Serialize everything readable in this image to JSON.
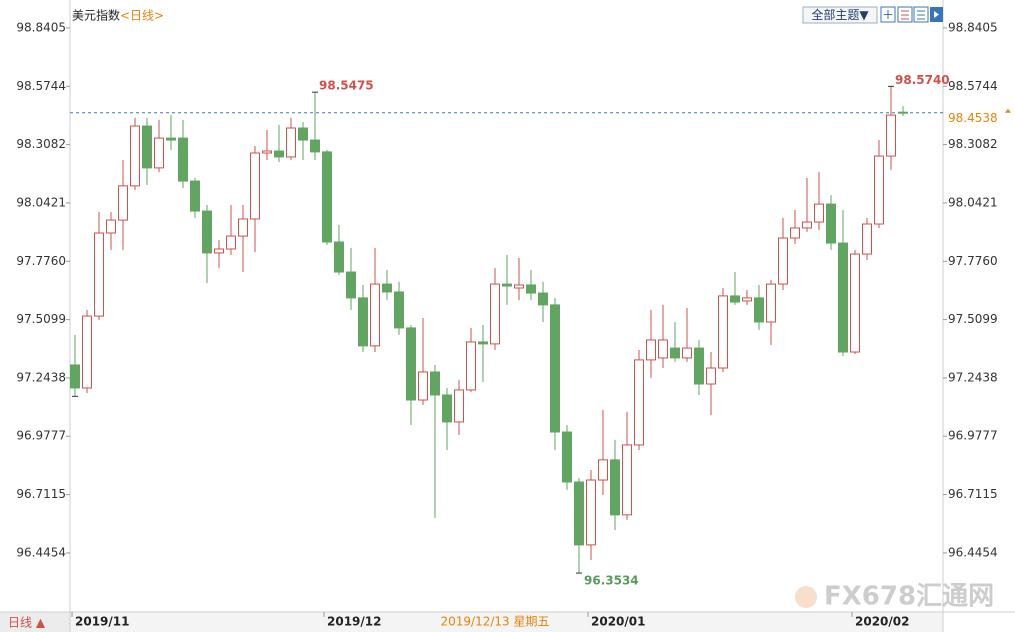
{
  "chart_data": {
    "type": "candlestick",
    "title": "美元指数",
    "period": "<日线>",
    "theme_button": "全部主题▼",
    "period_button": "日线 ▲",
    "cursor_label": "2019/12/13 星期五",
    "watermark": "FX678汇通网",
    "up_color": "#d0504a",
    "down_color": "#62a462",
    "last_price": 98.4538,
    "last_price_color": "#e8820c",
    "ylim": [
      96.185,
      98.968
    ],
    "yticks": [
      98.8405,
      98.5744,
      98.3082,
      98.0421,
      {
        "value": 97.776,
        "label": "97.7760"
      },
      97.5099,
      97.2438,
      96.9777,
      96.7115,
      96.4454
    ],
    "categories": [
      "2019/11",
      null,
      null,
      null,
      null,
      null,
      null,
      null,
      null,
      null,
      null,
      null,
      null,
      null,
      null,
      null,
      null,
      null,
      null,
      null,
      null,
      "2019/12",
      null,
      null,
      null,
      null,
      null,
      null,
      null,
      null,
      null,
      null,
      null,
      null,
      null,
      null,
      null,
      null,
      null,
      null,
      null,
      null,
      null,
      "2020/01",
      null,
      null,
      null,
      null,
      null,
      null,
      null,
      null,
      null,
      null,
      null,
      null,
      null,
      null,
      null,
      null,
      null,
      null,
      null,
      null,
      null,
      "2020/02",
      null,
      null,
      null,
      null
    ],
    "open": [
      97.303,
      97.198,
      97.526,
      97.905,
      97.964,
      98.12,
      98.393,
      98.202,
      98.338,
      98.338,
      98.142,
      98.005,
      97.814,
      97.832,
      97.891,
      97.969,
      98.27,
      98.279,
      98.252,
      98.384,
      98.329,
      98.275,
      97.864,
      97.727,
      97.609,
      97.39,
      97.672,
      97.636,
      97.472,
      97.143,
      97.271,
      97.166,
      97.043,
      97.189,
      97.408,
      97.399,
      97.672,
      97.654,
      97.668,
      97.631,
      97.577,
      96.997,
      96.769,
      96.482,
      96.778,
      96.87,
      96.619,
      96.938,
      97.326,
      97.335,
      97.38,
      97.335,
      97.38,
      97.216,
      97.289,
      97.618,
      97.595,
      97.609,
      97.499,
      97.672,
      97.882,
      97.928,
      97.955,
      98.037,
      97.859,
      97.362,
      97.809,
      97.946,
      98.256,
      98.456
    ],
    "high": [
      97.44,
      97.554,
      98.001,
      98.001,
      98.238,
      98.43,
      98.43,
      98.421,
      98.443,
      98.421,
      98.156,
      98.033,
      97.873,
      98.033,
      98.033,
      98.302,
      98.375,
      98.398,
      98.43,
      98.411,
      98.5475,
      98.284,
      97.942,
      97.837,
      97.668,
      97.837,
      97.736,
      97.682,
      97.485,
      97.517,
      97.303,
      97.198,
      97.234,
      97.472,
      97.485,
      97.745,
      97.805,
      97.791,
      97.736,
      97.682,
      97.609,
      97.029,
      96.787,
      96.824,
      97.098,
      96.961,
      97.089,
      97.371,
      97.554,
      97.577,
      97.499,
      97.563,
      97.417,
      97.362,
      97.654,
      97.727,
      97.645,
      97.668,
      97.691,
      97.974,
      98.01,
      98.156,
      98.183,
      98.078,
      98.01,
      97.828,
      97.974,
      98.329,
      98.574,
      98.484
    ],
    "low": [
      97.1597,
      97.175,
      97.508,
      97.828,
      97.828,
      98.101,
      98.124,
      98.183,
      98.284,
      98.11,
      97.974,
      97.677,
      97.745,
      97.805,
      97.727,
      97.818,
      98.238,
      98.229,
      98.238,
      98.238,
      98.238,
      97.85,
      97.713,
      97.554,
      97.362,
      97.362,
      97.599,
      97.44,
      97.029,
      97.12,
      96.605,
      96.915,
      96.984,
      97.18,
      97.225,
      97.371,
      97.577,
      97.599,
      97.599,
      97.499,
      96.915,
      96.733,
      96.3534,
      96.413,
      96.71,
      96.55,
      96.596,
      96.915,
      97.244,
      97.289,
      97.317,
      97.317,
      97.166,
      97.075,
      97.271,
      97.577,
      97.577,
      97.463,
      97.394,
      97.645,
      97.855,
      97.91,
      97.919,
      97.828,
      97.344,
      97.353,
      97.782,
      97.928,
      98.193,
      98.439
    ],
    "close": [
      97.198,
      97.526,
      97.905,
      97.964,
      98.12,
      98.393,
      98.202,
      98.338,
      98.329,
      98.142,
      98.005,
      97.814,
      97.832,
      97.891,
      97.969,
      98.27,
      98.279,
      98.252,
      98.384,
      98.329,
      98.275,
      97.864,
      97.727,
      97.609,
      97.39,
      97.672,
      97.636,
      97.472,
      97.143,
      97.271,
      97.166,
      97.043,
      97.189,
      97.408,
      97.399,
      97.672,
      97.663,
      97.668,
      97.631,
      97.577,
      96.997,
      96.769,
      96.482,
      96.778,
      96.87,
      96.619,
      96.938,
      97.326,
      97.417,
      97.417,
      97.335,
      97.38,
      97.216,
      97.289,
      97.618,
      97.59,
      97.609,
      97.499,
      97.672,
      97.882,
      97.928,
      97.955,
      98.037,
      97.859,
      97.362,
      97.809,
      97.946,
      98.256,
      98.443,
      98.4538
    ],
    "high_labels": [
      null,
      null,
      null,
      null,
      null,
      null,
      null,
      null,
      null,
      null,
      null,
      null,
      null,
      null,
      null,
      null,
      null,
      null,
      null,
      null,
      "98.5475",
      null,
      null,
      null,
      null,
      null,
      null,
      null,
      null,
      null,
      null,
      null,
      null,
      null,
      null,
      null,
      null,
      null,
      null,
      null,
      null,
      null,
      null,
      null,
      null,
      null,
      null,
      null,
      null,
      null,
      null,
      null,
      null,
      null,
      null,
      null,
      null,
      null,
      null,
      null,
      null,
      null,
      null,
      null,
      null,
      null,
      null,
      null,
      "98.5740",
      null
    ],
    "low_labels": [
      null,
      null,
      null,
      null,
      null,
      null,
      null,
      null,
      null,
      null,
      null,
      null,
      null,
      null,
      null,
      null,
      null,
      null,
      null,
      null,
      null,
      null,
      null,
      null,
      null,
      null,
      null,
      null,
      null,
      null,
      null,
      null,
      null,
      null,
      null,
      null,
      null,
      null,
      null,
      null,
      null,
      null,
      "96.3534",
      null,
      null,
      null,
      null,
      null,
      null,
      null,
      null,
      null,
      null,
      null,
      null,
      null,
      null,
      null,
      null,
      null,
      null,
      null,
      null,
      null,
      null,
      null,
      null,
      null,
      null,
      null
    ]
  }
}
